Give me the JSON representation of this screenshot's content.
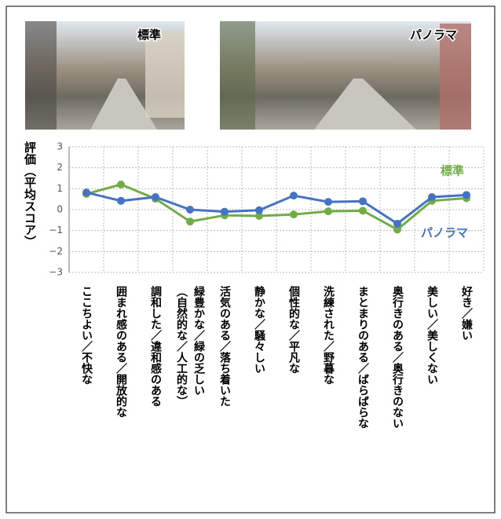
{
  "photos": [
    {
      "label": "標準"
    },
    {
      "label": "パノラマ"
    }
  ],
  "chart_data": {
    "type": "line",
    "y_label": "評価（平均スコア）",
    "categories": [
      "ここちよい／不快な",
      "囲まれ感のある／開放的な",
      "調和した／違和感のある",
      "緑豊かな／緑の乏しい\n（自然的な／人工的な）",
      "活気のある／落ち着いた",
      "静かな／騒々しい",
      "個性的な／平凡な",
      "洗練された／野暮な",
      "まとまりのある／ばらばらな",
      "奥行きのある／奥行きのない",
      "美しい／美しくない",
      "好き／嫌い"
    ],
    "series": [
      {
        "name": "標準",
        "color": "#70ad47",
        "values": [
          0.75,
          1.2,
          0.52,
          -0.57,
          -0.27,
          -0.3,
          -0.23,
          -0.08,
          -0.05,
          -0.95,
          0.42,
          0.55
        ]
      },
      {
        "name": "パノラマ",
        "color": "#4472c4",
        "values": [
          0.82,
          0.42,
          0.6,
          0.0,
          -0.1,
          -0.03,
          0.67,
          0.37,
          0.4,
          -0.67,
          0.6,
          0.7
        ]
      }
    ],
    "ylim": [
      -3,
      3
    ],
    "yticks": [
      {
        "value": -3,
        "label": "−3"
      },
      {
        "value": -2,
        "label": "−2"
      },
      {
        "value": -1,
        "label": "−1"
      },
      0,
      1,
      2,
      3
    ],
    "grid": true
  }
}
